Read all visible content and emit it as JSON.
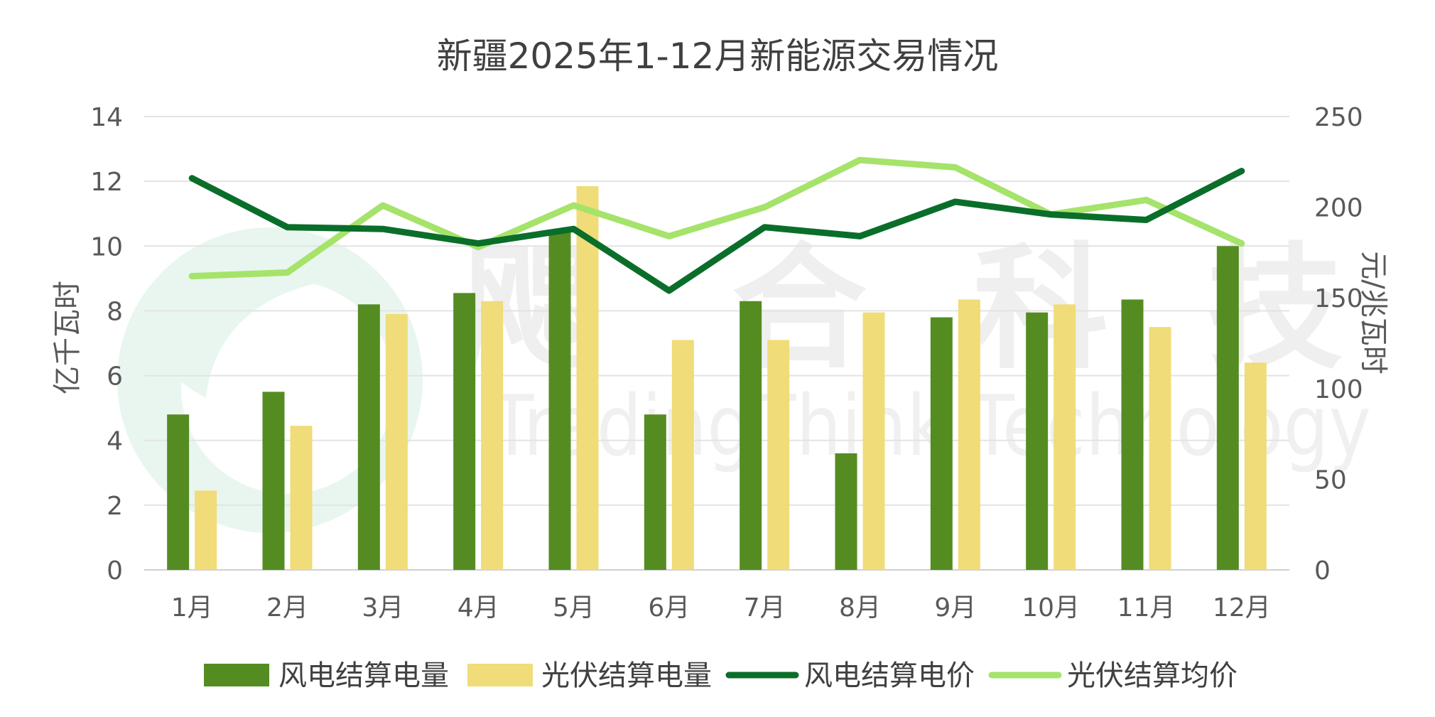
{
  "chart_data": {
    "type": "bar",
    "title": "新疆2025年1-12月新能源交易情况",
    "categories": [
      "1月",
      "2月",
      "3月",
      "4月",
      "5月",
      "6月",
      "7月",
      "8月",
      "9月",
      "10月",
      "11月",
      "12月"
    ],
    "ylabel_left": "亿千瓦时",
    "ylabel_right": "元/兆瓦时",
    "ylim_left": [
      0,
      14
    ],
    "ylim_right": [
      0,
      250
    ],
    "yticks_left": [
      0,
      2,
      4,
      6,
      8,
      10,
      12,
      14
    ],
    "yticks_right": [
      0,
      50,
      100,
      150,
      200,
      250
    ],
    "series": [
      {
        "name": "风电结算电量",
        "type": "bar",
        "axis": "left",
        "color": "#548c22",
        "values": [
          4.8,
          5.5,
          8.2,
          8.55,
          10.5,
          4.8,
          8.3,
          3.6,
          7.8,
          7.95,
          8.35,
          10.0
        ]
      },
      {
        "name": "光伏结算电量",
        "type": "bar",
        "axis": "left",
        "color": "#f0dc78",
        "values": [
          2.45,
          4.45,
          7.9,
          8.3,
          11.85,
          7.1,
          7.1,
          7.95,
          8.35,
          8.2,
          7.5,
          6.4
        ]
      },
      {
        "name": "风电结算电价",
        "type": "line",
        "axis": "right",
        "color": "#0a6e2a",
        "values": [
          216,
          189,
          188,
          180,
          188,
          154,
          189,
          184,
          203,
          196,
          193,
          220
        ]
      },
      {
        "name": "光伏结算均价",
        "type": "line",
        "axis": "right",
        "color": "#a5e36a",
        "values": [
          162,
          164,
          201,
          178,
          201,
          184,
          200,
          226,
          222,
          196,
          204,
          180
        ]
      }
    ],
    "grid": true,
    "legend_position": "bottom"
  },
  "watermark": {
    "cn": [
      "飔",
      "合",
      "科",
      "技"
    ],
    "en": "TradingThink Technology"
  }
}
